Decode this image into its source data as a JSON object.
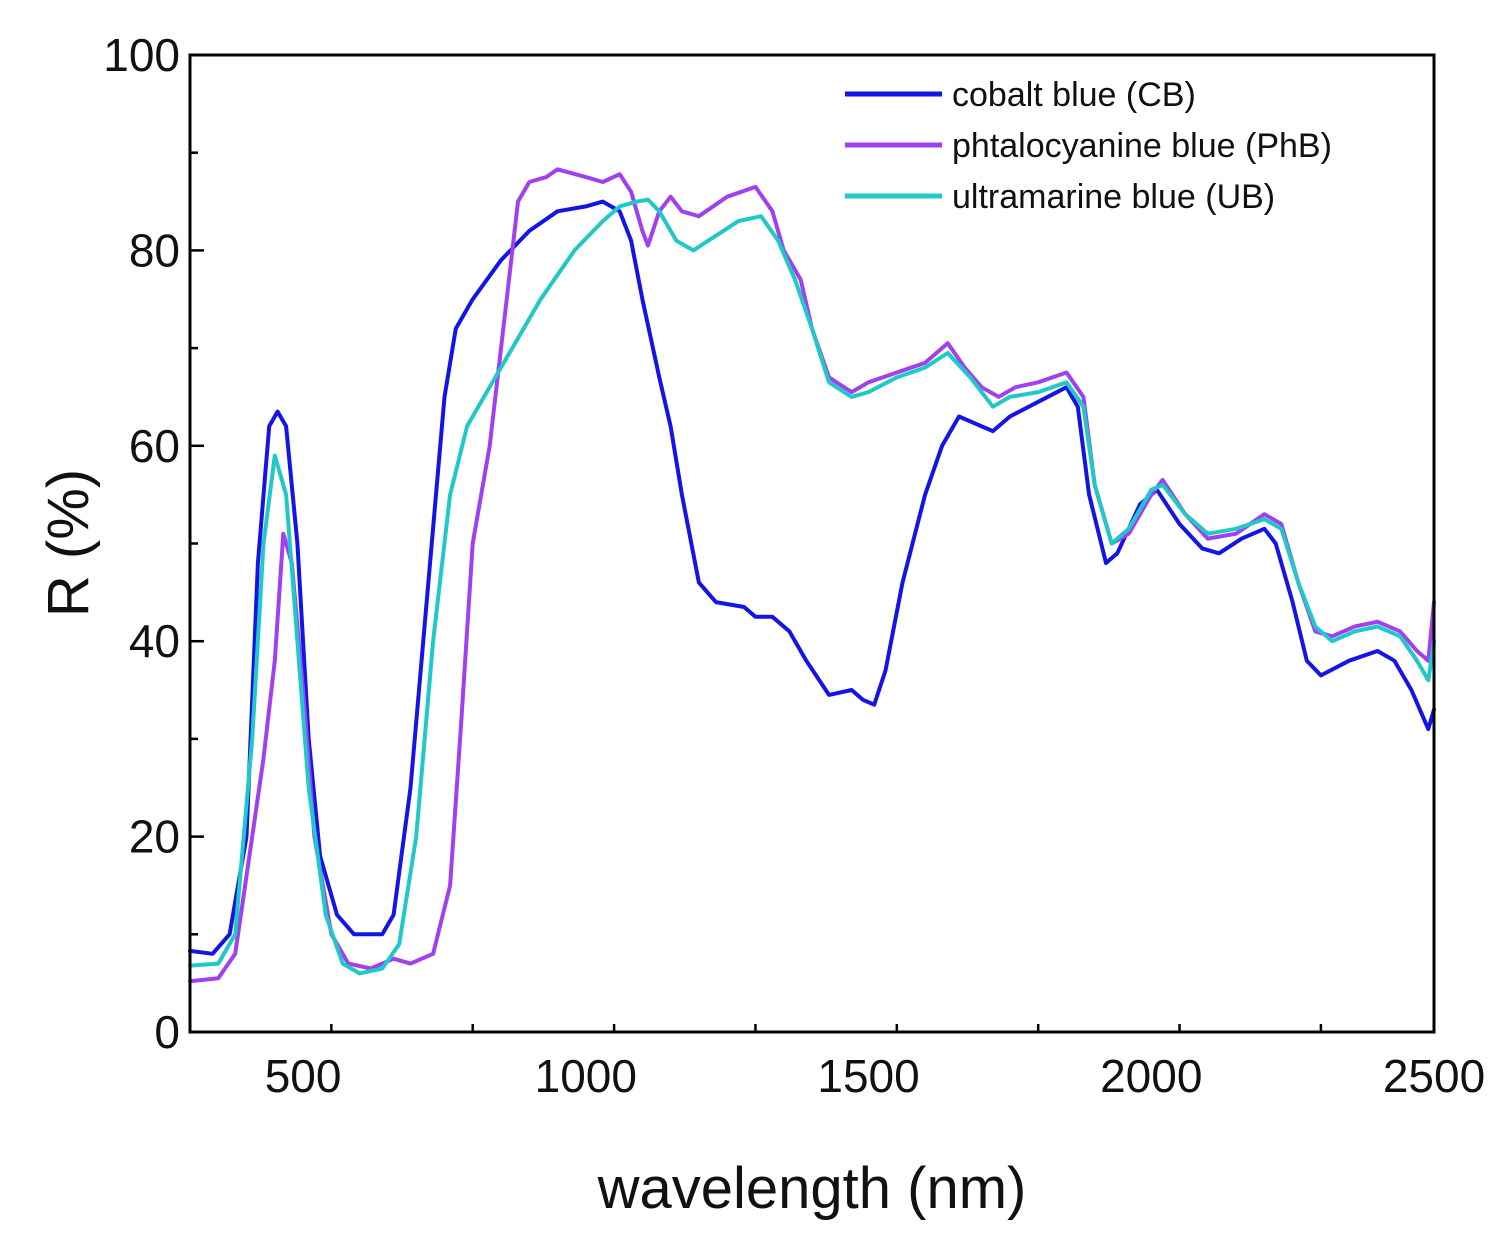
{
  "chart_data": {
    "type": "line",
    "title": "",
    "xlabel": "wavelength (nm)",
    "ylabel": "R (%)",
    "xlim": [
      300,
      2500
    ],
    "ylim": [
      0,
      100
    ],
    "x_ticks": [
      500,
      1000,
      1500,
      2000,
      2500
    ],
    "y_ticks": [
      0,
      20,
      40,
      60,
      80,
      100
    ],
    "x_tick_labels": [
      "500",
      "1000",
      "1500",
      "2000",
      "2500"
    ],
    "y_tick_labels": [
      "0",
      "20",
      "40",
      "60",
      "80",
      "100"
    ],
    "grid": false,
    "legend_position": "top-right",
    "series": [
      {
        "name": "cobalt blue (CB)",
        "color": "#1414e6",
        "points": [
          [
            300,
            8.3
          ],
          [
            340,
            8.0
          ],
          [
            370,
            10
          ],
          [
            400,
            20
          ],
          [
            420,
            48
          ],
          [
            440,
            62
          ],
          [
            455,
            63.5
          ],
          [
            470,
            62
          ],
          [
            490,
            50
          ],
          [
            510,
            30
          ],
          [
            530,
            18
          ],
          [
            560,
            12
          ],
          [
            590,
            10
          ],
          [
            640,
            10
          ],
          [
            660,
            12
          ],
          [
            690,
            25
          ],
          [
            720,
            45
          ],
          [
            750,
            65
          ],
          [
            770,
            72
          ],
          [
            800,
            75
          ],
          [
            850,
            79
          ],
          [
            900,
            82
          ],
          [
            950,
            84
          ],
          [
            1000,
            84.5
          ],
          [
            1030,
            85
          ],
          [
            1060,
            84
          ],
          [
            1080,
            81
          ],
          [
            1100,
            75
          ],
          [
            1130,
            67
          ],
          [
            1150,
            62
          ],
          [
            1170,
            55
          ],
          [
            1200,
            46
          ],
          [
            1230,
            44
          ],
          [
            1280,
            43.5
          ],
          [
            1300,
            42.5
          ],
          [
            1330,
            42.5
          ],
          [
            1360,
            41
          ],
          [
            1390,
            38
          ],
          [
            1430,
            34.5
          ],
          [
            1470,
            35
          ],
          [
            1490,
            34
          ],
          [
            1510,
            33.5
          ],
          [
            1530,
            37
          ],
          [
            1560,
            46
          ],
          [
            1600,
            55
          ],
          [
            1630,
            60
          ],
          [
            1660,
            63
          ],
          [
            1700,
            62
          ],
          [
            1720,
            61.5
          ],
          [
            1750,
            63
          ],
          [
            1800,
            64.5
          ],
          [
            1850,
            66
          ],
          [
            1870,
            64
          ],
          [
            1890,
            55
          ],
          [
            1920,
            48
          ],
          [
            1940,
            49
          ],
          [
            1980,
            54
          ],
          [
            2010,
            55.5
          ],
          [
            2050,
            52
          ],
          [
            2090,
            49.5
          ],
          [
            2120,
            49
          ],
          [
            2160,
            50.5
          ],
          [
            2200,
            51.5
          ],
          [
            2220,
            50
          ],
          [
            2250,
            44
          ],
          [
            2275,
            38
          ],
          [
            2300,
            36.5
          ],
          [
            2350,
            38
          ],
          [
            2400,
            39
          ],
          [
            2430,
            38
          ],
          [
            2460,
            35
          ],
          [
            2490,
            31
          ],
          [
            2500,
            33
          ]
        ]
      },
      {
        "name": "phtalocyanine blue (PhB)",
        "color": "#a040f0",
        "points": [
          [
            300,
            5.2
          ],
          [
            350,
            5.5
          ],
          [
            380,
            8
          ],
          [
            410,
            20
          ],
          [
            430,
            28
          ],
          [
            450,
            38
          ],
          [
            465,
            51
          ],
          [
            480,
            48
          ],
          [
            500,
            35
          ],
          [
            520,
            20
          ],
          [
            550,
            10
          ],
          [
            580,
            7
          ],
          [
            620,
            6.5
          ],
          [
            660,
            7.5
          ],
          [
            690,
            7
          ],
          [
            730,
            8
          ],
          [
            760,
            15
          ],
          [
            780,
            32
          ],
          [
            800,
            50
          ],
          [
            830,
            60
          ],
          [
            860,
            75
          ],
          [
            880,
            85
          ],
          [
            900,
            87
          ],
          [
            930,
            87.5
          ],
          [
            950,
            88.3
          ],
          [
            1000,
            87.5
          ],
          [
            1030,
            87
          ],
          [
            1060,
            87.8
          ],
          [
            1080,
            86
          ],
          [
            1100,
            82
          ],
          [
            1110,
            80.5
          ],
          [
            1130,
            84
          ],
          [
            1150,
            85.5
          ],
          [
            1170,
            84
          ],
          [
            1200,
            83.5
          ],
          [
            1250,
            85.5
          ],
          [
            1300,
            86.5
          ],
          [
            1330,
            84
          ],
          [
            1350,
            80
          ],
          [
            1380,
            77
          ],
          [
            1400,
            72
          ],
          [
            1430,
            67
          ],
          [
            1470,
            65.5
          ],
          [
            1500,
            66.5
          ],
          [
            1550,
            67.5
          ],
          [
            1600,
            68.5
          ],
          [
            1640,
            70.5
          ],
          [
            1670,
            68
          ],
          [
            1700,
            66
          ],
          [
            1730,
            65
          ],
          [
            1760,
            66
          ],
          [
            1800,
            66.5
          ],
          [
            1850,
            67.5
          ],
          [
            1880,
            65
          ],
          [
            1900,
            56
          ],
          [
            1930,
            50
          ],
          [
            1960,
            51
          ],
          [
            2000,
            55
          ],
          [
            2020,
            56.5
          ],
          [
            2060,
            53
          ],
          [
            2100,
            50.5
          ],
          [
            2150,
            51
          ],
          [
            2200,
            53
          ],
          [
            2230,
            52
          ],
          [
            2260,
            46
          ],
          [
            2290,
            41
          ],
          [
            2320,
            40.5
          ],
          [
            2360,
            41.5
          ],
          [
            2400,
            42
          ],
          [
            2440,
            41
          ],
          [
            2470,
            39
          ],
          [
            2490,
            38
          ],
          [
            2500,
            44
          ]
        ]
      },
      {
        "name": "ultramarine blue (UB)",
        "color": "#20c8c8",
        "points": [
          [
            300,
            6.8
          ],
          [
            350,
            7.0
          ],
          [
            380,
            10
          ],
          [
            410,
            30
          ],
          [
            430,
            50
          ],
          [
            450,
            59
          ],
          [
            470,
            55
          ],
          [
            490,
            40
          ],
          [
            510,
            25
          ],
          [
            540,
            12
          ],
          [
            570,
            7
          ],
          [
            600,
            6
          ],
          [
            640,
            6.5
          ],
          [
            670,
            9
          ],
          [
            700,
            20
          ],
          [
            730,
            40
          ],
          [
            760,
            55
          ],
          [
            790,
            62
          ],
          [
            820,
            65
          ],
          [
            870,
            70
          ],
          [
            920,
            75
          ],
          [
            980,
            80
          ],
          [
            1030,
            83
          ],
          [
            1060,
            84.5
          ],
          [
            1090,
            85
          ],
          [
            1110,
            85.2
          ],
          [
            1130,
            84
          ],
          [
            1160,
            81
          ],
          [
            1190,
            80
          ],
          [
            1230,
            81.5
          ],
          [
            1270,
            83
          ],
          [
            1310,
            83.5
          ],
          [
            1340,
            81
          ],
          [
            1370,
            77
          ],
          [
            1400,
            72
          ],
          [
            1430,
            66.5
          ],
          [
            1470,
            65
          ],
          [
            1500,
            65.5
          ],
          [
            1550,
            67
          ],
          [
            1600,
            68
          ],
          [
            1640,
            69.5
          ],
          [
            1680,
            67
          ],
          [
            1720,
            64
          ],
          [
            1750,
            65
          ],
          [
            1800,
            65.5
          ],
          [
            1850,
            66.5
          ],
          [
            1880,
            64
          ],
          [
            1900,
            56
          ],
          [
            1930,
            50
          ],
          [
            1960,
            51.5
          ],
          [
            2000,
            55.5
          ],
          [
            2020,
            56
          ],
          [
            2060,
            53
          ],
          [
            2100,
            51
          ],
          [
            2150,
            51.5
          ],
          [
            2200,
            52.5
          ],
          [
            2230,
            51.5
          ],
          [
            2260,
            46
          ],
          [
            2290,
            41.5
          ],
          [
            2320,
            40
          ],
          [
            2360,
            41
          ],
          [
            2400,
            41.5
          ],
          [
            2440,
            40.5
          ],
          [
            2470,
            38
          ],
          [
            2490,
            36
          ],
          [
            2500,
            40
          ]
        ]
      }
    ]
  }
}
